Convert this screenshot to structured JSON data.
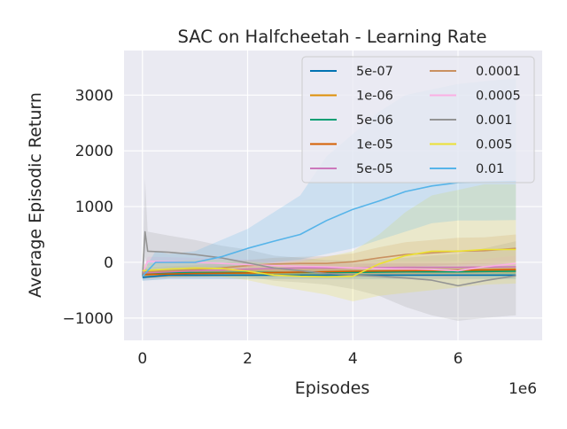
{
  "chart_data": {
    "type": "line",
    "title": "SAC on Halfcheetah - Learning Rate",
    "xlabel": "Episodes",
    "ylabel": "Average Episodic Return",
    "x_scale_label": "1e6",
    "xlim": [
      -0.35,
      7.6
    ],
    "ylim": [
      -1400,
      3800
    ],
    "x_ticks": [
      0,
      2,
      4,
      6
    ],
    "x_tick_labels": [
      "0",
      "2",
      "4",
      "6"
    ],
    "y_ticks": [
      -1000,
      0,
      1000,
      2000,
      3000
    ],
    "y_tick_labels": [
      "−1000",
      "0",
      "1000",
      "2000",
      "3000"
    ],
    "grid": true,
    "legend_position": "top-right",
    "series": [
      {
        "name": "5e-07",
        "color": "#0173b2",
        "x": [
          0,
          0.5,
          1,
          2,
          3,
          4,
          5,
          6,
          7.1
        ],
        "y": [
          -270,
          -230,
          -230,
          -230,
          -230,
          -230,
          -230,
          -230,
          -230
        ],
        "lower": [
          -330,
          -300,
          -300,
          -300,
          -300,
          -300,
          -300,
          -300,
          -300
        ],
        "upper": [
          -200,
          -160,
          -160,
          -160,
          -160,
          -160,
          -160,
          -160,
          -160
        ]
      },
      {
        "name": "1e-06",
        "color": "#de8f05",
        "x": [
          0,
          0.5,
          1,
          2,
          3,
          4,
          5,
          6,
          7.1
        ],
        "y": [
          -210,
          -200,
          -200,
          -190,
          -180,
          -170,
          -160,
          -150,
          -150
        ],
        "lower": [
          -280,
          -260,
          -260,
          -250,
          -240,
          -230,
          -220,
          -210,
          -210
        ],
        "upper": [
          -140,
          -140,
          -140,
          -130,
          -120,
          -110,
          -100,
          -90,
          -90
        ]
      },
      {
        "name": "5e-06",
        "color": "#029e73",
        "x": [
          0,
          0.5,
          1,
          2,
          3,
          4,
          5,
          6,
          7.1
        ],
        "y": [
          -190,
          -185,
          -185,
          -180,
          -180,
          -180,
          -170,
          -170,
          -160
        ],
        "lower": [
          -260,
          -250,
          -250,
          -240,
          -240,
          -240,
          -230,
          -230,
          -220
        ],
        "upper": [
          -120,
          -120,
          -120,
          -120,
          -120,
          -120,
          -110,
          -110,
          -100
        ]
      },
      {
        "name": "1e-05",
        "color": "#d55e00",
        "x": [
          0,
          0.5,
          1,
          2,
          3,
          4,
          5,
          6,
          7.1
        ],
        "y": [
          -220,
          -210,
          -200,
          -190,
          -175,
          -160,
          -150,
          -140,
          -130
        ],
        "lower": [
          -290,
          -270,
          -260,
          -250,
          -235,
          -220,
          -210,
          -200,
          -190
        ],
        "upper": [
          -150,
          -150,
          -140,
          -130,
          -115,
          -100,
          -90,
          -80,
          -70
        ]
      },
      {
        "name": "5e-05",
        "color": "#cc78bc",
        "x": [
          0,
          0.5,
          1,
          1.5,
          2,
          3,
          4,
          5,
          6,
          7.1
        ],
        "y": [
          -190,
          -170,
          -150,
          -140,
          -120,
          -100,
          -100,
          -90,
          -90,
          -80
        ],
        "lower": [
          -260,
          -240,
          -220,
          -210,
          -190,
          -170,
          -170,
          -160,
          -160,
          -150
        ],
        "upper": [
          -120,
          -100,
          -80,
          -70,
          -50,
          -30,
          -30,
          -20,
          -20,
          -10
        ]
      },
      {
        "name": "0.0001",
        "color": "#ca9161",
        "x": [
          0,
          0.5,
          1,
          1.5,
          2,
          2.5,
          3,
          3.5,
          4,
          4.5,
          5,
          5.5,
          6,
          6.5,
          7.1
        ],
        "y": [
          -170,
          -150,
          -130,
          -100,
          -60,
          -30,
          -20,
          -20,
          10,
          80,
          140,
          170,
          200,
          210,
          250
        ],
        "lower": [
          -250,
          -230,
          -210,
          -190,
          -160,
          -140,
          -140,
          -150,
          -140,
          -110,
          -80,
          -60,
          -40,
          -30,
          0
        ],
        "upper": [
          -90,
          -70,
          -50,
          -10,
          40,
          80,
          100,
          110,
          160,
          270,
          360,
          400,
          440,
          450,
          500
        ]
      },
      {
        "name": "0.0005",
        "color": "#fbafe4",
        "x": [
          0,
          0.1,
          0.5,
          1,
          1.5,
          2,
          2.5,
          3,
          3.5,
          4,
          4.5,
          5,
          5.5,
          6,
          6.5,
          7.1
        ],
        "y": [
          -200,
          20,
          10,
          0,
          -20,
          -40,
          -60,
          -70,
          -80,
          -100,
          -110,
          -120,
          -130,
          -150,
          -80,
          -20
        ],
        "lower": [
          -280,
          -60,
          -70,
          -80,
          -110,
          -130,
          -150,
          -170,
          -180,
          -210,
          -230,
          -250,
          -270,
          -290,
          -220,
          -160
        ],
        "upper": [
          -120,
          100,
          90,
          80,
          70,
          50,
          30,
          30,
          20,
          10,
          10,
          10,
          10,
          0,
          60,
          120
        ]
      },
      {
        "name": "0.001",
        "color": "#949494",
        "x": [
          0,
          0.05,
          0.1,
          0.5,
          1,
          1.5,
          2,
          2.5,
          3,
          3.5,
          4,
          4.5,
          5,
          5.5,
          6,
          6.5,
          7.1
        ],
        "y": [
          -250,
          550,
          200,
          180,
          140,
          80,
          -10,
          -100,
          -150,
          -200,
          -230,
          -250,
          -280,
          -320,
          -420,
          -330,
          -240
        ],
        "lower": [
          -300,
          100,
          -100,
          -100,
          -130,
          -200,
          -260,
          -330,
          -360,
          -400,
          -480,
          -600,
          -800,
          -950,
          -1050,
          -1000,
          -950
        ],
        "upper": [
          -200,
          1500,
          550,
          480,
          400,
          300,
          230,
          120,
          80,
          40,
          30,
          50,
          80,
          120,
          150,
          250,
          380
        ]
      },
      {
        "name": "0.005",
        "color": "#ece133",
        "x": [
          0,
          0.5,
          1,
          1.5,
          2,
          2.5,
          3,
          3.5,
          4,
          4.5,
          5,
          5.5,
          6,
          6.5,
          7.1
        ],
        "y": [
          -150,
          -120,
          -100,
          -110,
          -160,
          -230,
          -250,
          -260,
          -250,
          -30,
          120,
          200,
          200,
          230,
          230
        ],
        "lower": [
          -260,
          -250,
          -240,
          -260,
          -320,
          -420,
          -500,
          -580,
          -700,
          -600,
          -550,
          -500,
          -450,
          -400,
          -380
        ],
        "upper": [
          -40,
          20,
          40,
          50,
          20,
          -20,
          20,
          100,
          200,
          500,
          900,
          1200,
          1300,
          1400,
          1400
        ]
      },
      {
        "name": "0.01",
        "color": "#56b4e9",
        "x": [
          0,
          0.25,
          0.5,
          1,
          1.5,
          2,
          2.5,
          3,
          3.5,
          4,
          4.5,
          5,
          5.5,
          6,
          6.5,
          7.1
        ],
        "y": [
          -250,
          0,
          0,
          0,
          100,
          250,
          380,
          500,
          750,
          950,
          1100,
          1270,
          1370,
          1430,
          1440,
          1450
        ],
        "lower": [
          -320,
          -200,
          -150,
          -120,
          -100,
          -50,
          0,
          50,
          150,
          250,
          400,
          550,
          700,
          750,
          750,
          760
        ],
        "upper": [
          -180,
          200,
          150,
          200,
          400,
          600,
          900,
          1200,
          1900,
          2300,
          2700,
          3000,
          3100,
          3200,
          3250,
          3300
        ]
      }
    ]
  }
}
